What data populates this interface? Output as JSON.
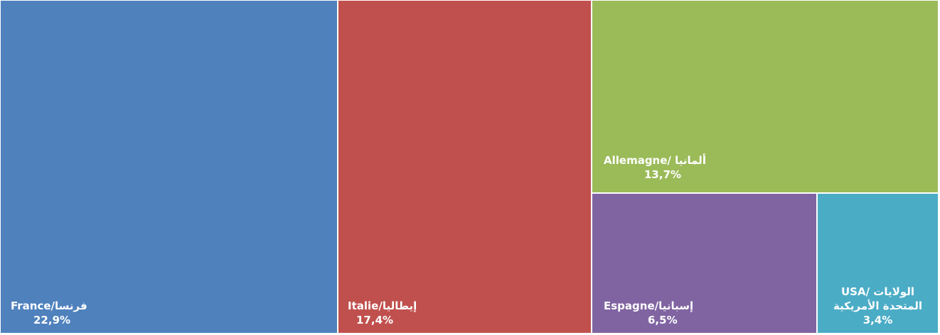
{
  "chart_data": {
    "type": "treemap",
    "items": [
      {
        "name": "France/فرنسا",
        "value": 22.9,
        "value_label": "22,9%",
        "color": "#4F81BD"
      },
      {
        "name": "Italie/إيطاليا",
        "value": 17.4,
        "value_label": "17,4%",
        "color": "#C0504D"
      },
      {
        "name": "Allemagne/ ألمانيا",
        "value": 13.7,
        "value_label": "13,7%",
        "color": "#9BBB59"
      },
      {
        "name": "Espagne/إسبانيا",
        "value": 6.5,
        "value_label": "6,5%",
        "color": "#8064A2"
      },
      {
        "name_lines": [
          "USA/ الولايات",
          "المتحدة الأمريكية"
        ],
        "value": 3.4,
        "value_label": "3,4%",
        "color": "#4BACC6"
      }
    ]
  }
}
